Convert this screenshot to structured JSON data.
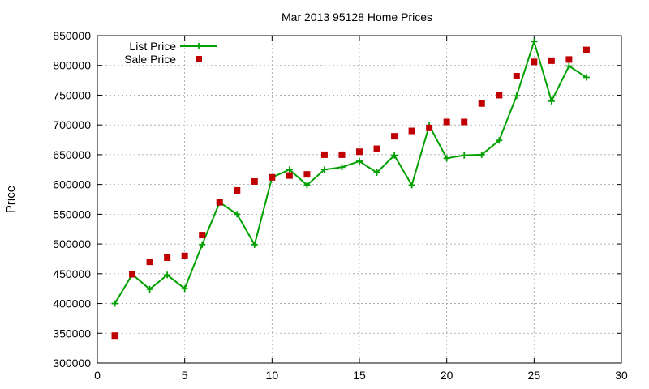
{
  "chart_data": {
    "type": "line",
    "title": "Mar 2013 95128 Home Prices",
    "xlabel": "",
    "ylabel": "Price",
    "xlim": [
      0,
      30
    ],
    "ylim": [
      300000,
      850000
    ],
    "x_ticks": [
      "0",
      "5",
      "10",
      "15",
      "20",
      "25",
      "30"
    ],
    "y_ticks": [
      "300000",
      "350000",
      "400000",
      "450000",
      "500000",
      "550000",
      "600000",
      "650000",
      "700000",
      "750000",
      "800000",
      "850000"
    ],
    "grid": true,
    "legend_position": "top-left",
    "series": [
      {
        "name": "List Price",
        "style": "line-plus-markers",
        "color": "#00a000",
        "x": [
          1,
          2,
          3,
          4,
          5,
          6,
          7,
          8,
          9,
          10,
          11,
          12,
          13,
          14,
          15,
          16,
          17,
          18,
          19,
          20,
          21,
          22,
          23,
          24,
          25,
          26,
          27,
          28
        ],
        "values": [
          400000,
          449000,
          424000,
          448000,
          425000,
          499000,
          570000,
          550000,
          499000,
          612000,
          625000,
          599000,
          625000,
          629000,
          639000,
          620000,
          649000,
          599000,
          699000,
          644000,
          649000,
          650000,
          674000,
          749000,
          840000,
          740000,
          799000,
          780000
        ]
      },
      {
        "name": "Sale Price",
        "style": "square-markers",
        "color": "#c00000",
        "x": [
          1,
          2,
          3,
          4,
          5,
          6,
          7,
          8,
          9,
          10,
          11,
          12,
          13,
          14,
          15,
          16,
          17,
          18,
          19,
          20,
          21,
          22,
          23,
          24,
          25,
          26,
          27,
          28
        ],
        "values": [
          346000,
          449000,
          470000,
          477000,
          480000,
          515000,
          570000,
          590000,
          605000,
          612000,
          615000,
          617000,
          650000,
          650000,
          655000,
          660000,
          681000,
          690000,
          695000,
          705000,
          705000,
          736000,
          750000,
          782000,
          806000,
          808000,
          810000,
          826000
        ]
      }
    ]
  }
}
